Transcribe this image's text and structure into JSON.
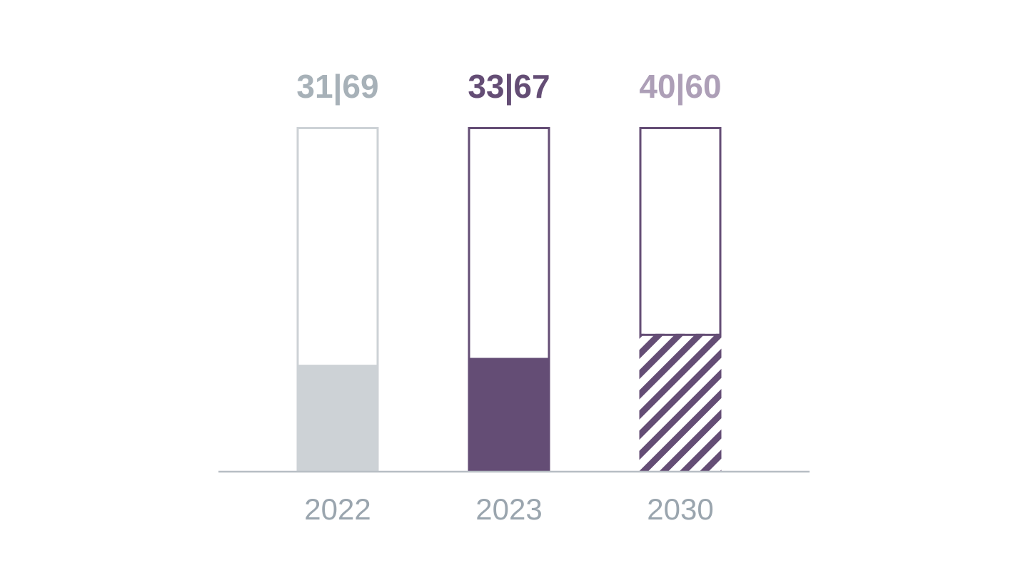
{
  "chart_data": {
    "type": "bar",
    "categories": [
      "2022",
      "2023",
      "2030"
    ],
    "series": [
      {
        "values": [
          31,
          33,
          40
        ]
      },
      {
        "values": [
          69,
          67,
          60
        ]
      }
    ],
    "value_labels": [
      "31|69",
      "33|67",
      "40|60"
    ],
    "ylim": [
      0,
      100
    ],
    "stacked": true,
    "grid": false,
    "bar_styles": [
      {
        "fill": "solid",
        "fill_color": "#cdd2d6",
        "outline_color": "#cdd2d6",
        "label_color": "#a7b1b8"
      },
      {
        "fill": "solid",
        "fill_color": "#644d75",
        "outline_color": "#644d75",
        "label_color": "#644d75"
      },
      {
        "fill": "hatched",
        "fill_color": "#644d75",
        "outline_color": "#644d75",
        "label_color": "#ad9fb7"
      }
    ],
    "axis_color": "#b7bec4",
    "tick_color": "#9aa5ae"
  }
}
